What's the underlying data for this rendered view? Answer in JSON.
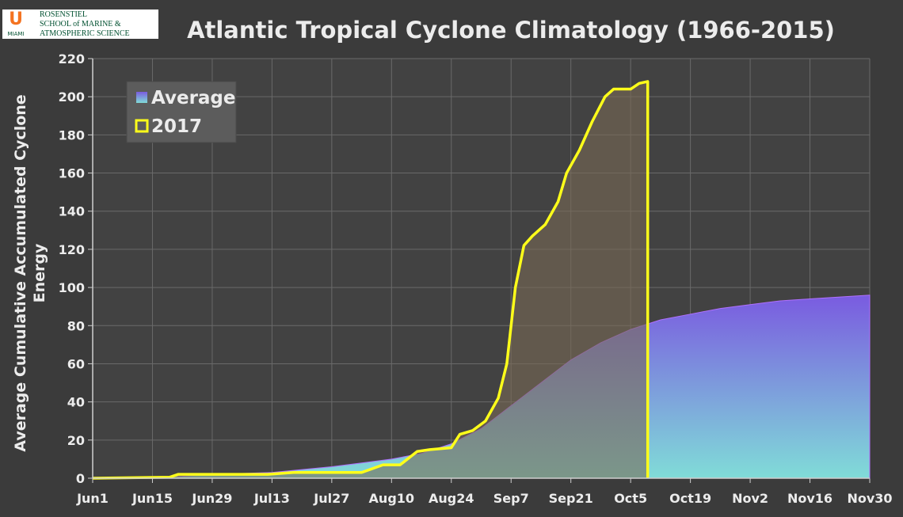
{
  "logo": {
    "letter": "U",
    "city": "MIAMI",
    "lines": [
      "ROSENSTIEL",
      "SCHOOL of MARINE &",
      "ATMOSPHERIC SCIENCE"
    ]
  },
  "chart_data": {
    "type": "area-line",
    "title": "Atlantic Tropical Cyclone Climatology (1966-2015)",
    "y_label_lines": [
      "Average Cumulative Accumulated Cyclone",
      "Energy"
    ],
    "xlim": [
      "Jun1",
      "Nov30"
    ],
    "xticks": [
      "Jun1",
      "Jun15",
      "Jun29",
      "Jul13",
      "Jul27",
      "Aug10",
      "Aug24",
      "Sep7",
      "Sep21",
      "Oct5",
      "Oct19",
      "Nov2",
      "Nov16",
      "Nov30"
    ],
    "ylim": [
      0,
      220
    ],
    "yticks": [
      0,
      20,
      40,
      60,
      80,
      100,
      120,
      140,
      160,
      180,
      200,
      220
    ],
    "grid": true,
    "legend": "upper-left",
    "series": [
      {
        "name": "Average",
        "color": "#7a5be0",
        "color_bottom": "#80dcd8",
        "kind": "area",
        "x": [
          "Jun1",
          "Jun8",
          "Jun15",
          "Jun22",
          "Jun29",
          "Jul6",
          "Jul13",
          "Jul20",
          "Jul27",
          "Aug3",
          "Aug10",
          "Aug17",
          "Aug24",
          "Aug31",
          "Sep7",
          "Sep14",
          "Sep21",
          "Sep28",
          "Oct5",
          "Oct12",
          "Oct19",
          "Oct26",
          "Nov2",
          "Nov9",
          "Nov16",
          "Nov23",
          "Nov30"
        ],
        "values": [
          0,
          0.3,
          0.5,
          1,
          2,
          2.5,
          3,
          4.5,
          6,
          8,
          10,
          13,
          18,
          26,
          38,
          50,
          62,
          71,
          78,
          83,
          86,
          89,
          91,
          93,
          94,
          95,
          96
        ]
      },
      {
        "name": "2017",
        "color": "#ffff1a",
        "kind": "line",
        "x": [
          "Jun1",
          "Jun19",
          "Jun21",
          "Jul12",
          "Jul18",
          "Aug3",
          "Aug8",
          "Aug12",
          "Aug16",
          "Aug19",
          "Aug24",
          "Aug26",
          "Aug29",
          "Sep1",
          "Sep4",
          "Sep6",
          "Sep8",
          "Sep10",
          "Sep12",
          "Sep15",
          "Sep18",
          "Sep20",
          "Sep23",
          "Sep26",
          "Sep29",
          "Oct1",
          "Oct5",
          "Oct7",
          "Oct9",
          "Oct9"
        ],
        "values": [
          0,
          0.5,
          2,
          2,
          3,
          3,
          7,
          7,
          14,
          15,
          16,
          23,
          25,
          30,
          42,
          60,
          100,
          122,
          127,
          133,
          145,
          160,
          172,
          187,
          200,
          204,
          204,
          207,
          208,
          0
        ]
      }
    ]
  }
}
